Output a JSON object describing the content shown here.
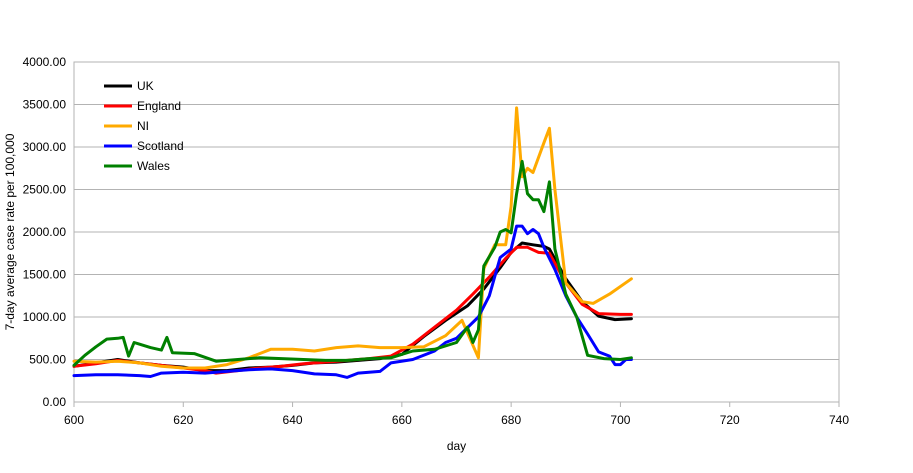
{
  "chart_data": {
    "type": "line",
    "title": "",
    "xlabel": "day",
    "ylabel": "7-day average case rate per 100,000",
    "xlim": [
      600,
      740
    ],
    "ylim": [
      0,
      4000
    ],
    "x_ticks": [
      "600",
      "620",
      "640",
      "660",
      "680",
      "700",
      "720",
      "740"
    ],
    "y_ticks": [
      "0.00",
      "500.00",
      "1000.00",
      "1500.00",
      "2000.00",
      "2500.00",
      "3000.00",
      "3500.00",
      "4000.00"
    ],
    "grid": "horizontal",
    "legend_position": "top-left",
    "series": [
      {
        "name": "UK",
        "color": "#000000",
        "points": [
          [
            600,
            420
          ],
          [
            604,
            460
          ],
          [
            608,
            500
          ],
          [
            612,
            460
          ],
          [
            616,
            430
          ],
          [
            620,
            410
          ],
          [
            624,
            370
          ],
          [
            628,
            370
          ],
          [
            632,
            400
          ],
          [
            636,
            410
          ],
          [
            640,
            430
          ],
          [
            644,
            460
          ],
          [
            648,
            470
          ],
          [
            652,
            490
          ],
          [
            656,
            510
          ],
          [
            660,
            560
          ],
          [
            664,
            770
          ],
          [
            668,
            960
          ],
          [
            672,
            1130
          ],
          [
            675,
            1330
          ],
          [
            678,
            1580
          ],
          [
            680,
            1760
          ],
          [
            682,
            1870
          ],
          [
            684,
            1850
          ],
          [
            686,
            1830
          ],
          [
            687,
            1800
          ],
          [
            690,
            1450
          ],
          [
            693,
            1180
          ],
          [
            696,
            1010
          ],
          [
            699,
            970
          ],
          [
            702,
            980
          ]
        ]
      },
      {
        "name": "England",
        "color": "#ff0000",
        "points": [
          [
            600,
            420
          ],
          [
            604,
            450
          ],
          [
            608,
            490
          ],
          [
            612,
            460
          ],
          [
            616,
            430
          ],
          [
            620,
            400
          ],
          [
            624,
            370
          ],
          [
            626,
            340
          ],
          [
            630,
            370
          ],
          [
            634,
            400
          ],
          [
            638,
            420
          ],
          [
            642,
            450
          ],
          [
            646,
            470
          ],
          [
            650,
            490
          ],
          [
            654,
            510
          ],
          [
            658,
            540
          ],
          [
            662,
            680
          ],
          [
            666,
            880
          ],
          [
            670,
            1080
          ],
          [
            673,
            1270
          ],
          [
            676,
            1470
          ],
          [
            679,
            1690
          ],
          [
            681,
            1820
          ],
          [
            683,
            1820
          ],
          [
            685,
            1760
          ],
          [
            687,
            1750
          ],
          [
            690,
            1400
          ],
          [
            693,
            1150
          ],
          [
            696,
            1040
          ],
          [
            700,
            1030
          ],
          [
            702,
            1030
          ]
        ]
      },
      {
        "name": "NI",
        "color": "#ffaa00",
        "points": [
          [
            600,
            480
          ],
          [
            604,
            470
          ],
          [
            608,
            480
          ],
          [
            612,
            460
          ],
          [
            616,
            420
          ],
          [
            620,
            400
          ],
          [
            624,
            400
          ],
          [
            628,
            440
          ],
          [
            632,
            520
          ],
          [
            636,
            620
          ],
          [
            640,
            620
          ],
          [
            644,
            600
          ],
          [
            648,
            640
          ],
          [
            652,
            660
          ],
          [
            656,
            640
          ],
          [
            660,
            640
          ],
          [
            664,
            650
          ],
          [
            668,
            780
          ],
          [
            671,
            960
          ],
          [
            674,
            520
          ],
          [
            675,
            1570
          ],
          [
            677,
            1850
          ],
          [
            679,
            1850
          ],
          [
            680,
            2300
          ],
          [
            681,
            3460
          ],
          [
            682,
            2650
          ],
          [
            683,
            2750
          ],
          [
            684,
            2700
          ],
          [
            686,
            3050
          ],
          [
            687,
            3220
          ],
          [
            688,
            2500
          ],
          [
            690,
            1400
          ],
          [
            693,
            1180
          ],
          [
            695,
            1160
          ],
          [
            698,
            1270
          ],
          [
            702,
            1450
          ]
        ]
      },
      {
        "name": "Scotland",
        "color": "#0000ff",
        "points": [
          [
            600,
            310
          ],
          [
            604,
            320
          ],
          [
            608,
            320
          ],
          [
            612,
            310
          ],
          [
            614,
            300
          ],
          [
            616,
            340
          ],
          [
            620,
            350
          ],
          [
            624,
            340
          ],
          [
            628,
            360
          ],
          [
            632,
            380
          ],
          [
            636,
            390
          ],
          [
            640,
            370
          ],
          [
            644,
            330
          ],
          [
            648,
            320
          ],
          [
            650,
            290
          ],
          [
            652,
            340
          ],
          [
            656,
            360
          ],
          [
            658,
            460
          ],
          [
            662,
            500
          ],
          [
            666,
            600
          ],
          [
            668,
            700
          ],
          [
            670,
            750
          ],
          [
            674,
            1000
          ],
          [
            676,
            1250
          ],
          [
            678,
            1700
          ],
          [
            680,
            1800
          ],
          [
            681,
            2070
          ],
          [
            682,
            2070
          ],
          [
            683,
            1980
          ],
          [
            684,
            2030
          ],
          [
            685,
            1980
          ],
          [
            686,
            1820
          ],
          [
            688,
            1560
          ],
          [
            690,
            1250
          ],
          [
            692,
            1000
          ],
          [
            694,
            800
          ],
          [
            696,
            590
          ],
          [
            698,
            540
          ],
          [
            699,
            440
          ],
          [
            700,
            440
          ],
          [
            701,
            500
          ],
          [
            702,
            500
          ]
        ]
      },
      {
        "name": "Wales",
        "color": "#008000",
        "points": [
          [
            600,
            430
          ],
          [
            602,
            550
          ],
          [
            604,
            650
          ],
          [
            606,
            740
          ],
          [
            608,
            750
          ],
          [
            609,
            760
          ],
          [
            610,
            540
          ],
          [
            611,
            700
          ],
          [
            612,
            680
          ],
          [
            614,
            640
          ],
          [
            616,
            610
          ],
          [
            617,
            760
          ],
          [
            618,
            580
          ],
          [
            622,
            570
          ],
          [
            626,
            480
          ],
          [
            630,
            500
          ],
          [
            634,
            520
          ],
          [
            638,
            510
          ],
          [
            642,
            500
          ],
          [
            646,
            490
          ],
          [
            650,
            490
          ],
          [
            654,
            510
          ],
          [
            658,
            520
          ],
          [
            662,
            600
          ],
          [
            666,
            620
          ],
          [
            670,
            700
          ],
          [
            672,
            880
          ],
          [
            673,
            700
          ],
          [
            674,
            850
          ],
          [
            675,
            1600
          ],
          [
            677,
            1820
          ],
          [
            678,
            2000
          ],
          [
            679,
            2030
          ],
          [
            680,
            1990
          ],
          [
            681,
            2450
          ],
          [
            682,
            2830
          ],
          [
            683,
            2450
          ],
          [
            684,
            2380
          ],
          [
            685,
            2380
          ],
          [
            686,
            2240
          ],
          [
            687,
            2590
          ],
          [
            688,
            1800
          ],
          [
            690,
            1270
          ],
          [
            692,
            1000
          ],
          [
            694,
            550
          ],
          [
            697,
            510
          ],
          [
            700,
            500
          ],
          [
            702,
            520
          ]
        ]
      }
    ]
  }
}
